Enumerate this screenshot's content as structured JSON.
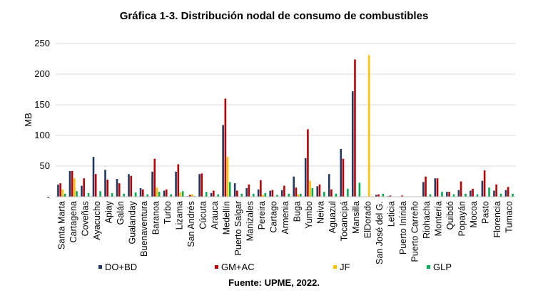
{
  "chart_data": {
    "type": "bar",
    "title": "Gráfica 1-3. Distribución nodal de consumo de combustibles",
    "ylabel": "MB",
    "xlabel": "",
    "ylim": [
      0,
      250
    ],
    "yticks": [
      "-",
      "50",
      "100",
      "150",
      "200",
      "250"
    ],
    "source": "Fuente: UPME, 2022.",
    "legend_position": "bottom",
    "categories": [
      "Santa Marta",
      "Cartagena",
      "Coveñas",
      "Ayacucho",
      "Apiay",
      "Galán",
      "Gualanday",
      "Buenaventura",
      "Baranoa",
      "Turbo",
      "Lizama",
      "San Andrés",
      "Cúcuta",
      "Arauca",
      "Medellín",
      "Puerto Salgar",
      "Manizales",
      "Pereira",
      "Cartago",
      "Armenia",
      "Buga",
      "Yumbo",
      "Neiva",
      "Aguazul",
      "Tocancipá",
      "Mansilla",
      "ElDorado",
      "San José del G.",
      "Leticia",
      "Puerto Inírida",
      "Puerto Carreño",
      "Riohacha",
      "Montería",
      "Quibdó",
      "Popayán",
      "Mocoa",
      "Pasto",
      "Florencia",
      "Tumaco"
    ],
    "series": [
      {
        "name": "DO+BD",
        "color": "#1f3864",
        "values": [
          20,
          42,
          18,
          65,
          44,
          29,
          37,
          14,
          41,
          10,
          41,
          1,
          37,
          6,
          117,
          22,
          14,
          12,
          10,
          11,
          33,
          63,
          17,
          37,
          78,
          172,
          0,
          3,
          1,
          0,
          0,
          24,
          30,
          8,
          11,
          10,
          26,
          10,
          11
        ]
      },
      {
        "name": "GM+AC",
        "color": "#c00000",
        "values": [
          22,
          42,
          30,
          37,
          28,
          22,
          34,
          12,
          62,
          12,
          53,
          3,
          38,
          10,
          160,
          10,
          20,
          27,
          11,
          18,
          15,
          110,
          20,
          12,
          62,
          224,
          0,
          4,
          2,
          2,
          0,
          33,
          30,
          8,
          25,
          13,
          43,
          20,
          16
        ]
      },
      {
        "name": "JF",
        "color": "#ffc000",
        "values": [
          12,
          30,
          0,
          0,
          0,
          0,
          0,
          0,
          15,
          0,
          7,
          4,
          0,
          0,
          65,
          0,
          0,
          3,
          0,
          0,
          4,
          26,
          0,
          0,
          0,
          0,
          231,
          0,
          0,
          0,
          0,
          0,
          0,
          0,
          0,
          0,
          0,
          0,
          0
        ]
      },
      {
        "name": "GLP",
        "color": "#00b050",
        "values": [
          5,
          9,
          6,
          9,
          6,
          5,
          7,
          4,
          8,
          4,
          9,
          1,
          8,
          4,
          24,
          5,
          5,
          6,
          3,
          5,
          5,
          14,
          8,
          5,
          13,
          23,
          0,
          5,
          0,
          0,
          0,
          4,
          8,
          4,
          5,
          4,
          15,
          5,
          5
        ]
      }
    ]
  }
}
